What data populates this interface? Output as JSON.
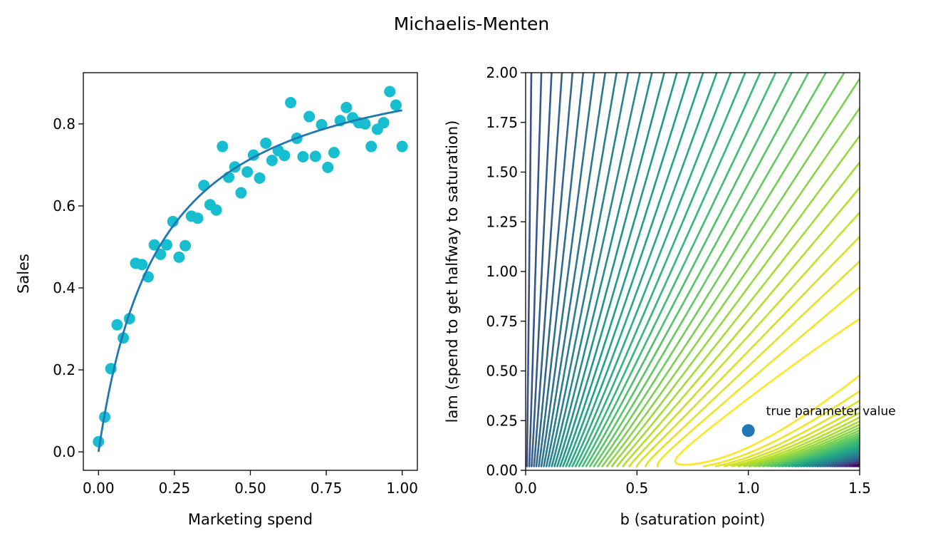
{
  "figure": {
    "title": "Michaelis-Menten"
  },
  "chart_data": [
    {
      "type": "scatter",
      "xlabel": "Marketing spend",
      "ylabel": "Sales",
      "xlim": [
        -0.05,
        1.05
      ],
      "ylim": [
        -0.045,
        0.925
      ],
      "xticks": [
        0.0,
        0.25,
        0.5,
        0.75,
        1.0
      ],
      "xtick_labels": [
        "0.00",
        "0.25",
        "0.50",
        "0.75",
        "1.00"
      ],
      "yticks": [
        0.0,
        0.2,
        0.4,
        0.6,
        0.8
      ],
      "ytick_labels": [
        "0.0",
        "0.2",
        "0.4",
        "0.6",
        "0.8"
      ],
      "grid": false,
      "series": [
        {
          "kind": "points",
          "color": "#17becf",
          "x": [
            0.0,
            0.0204,
            0.0408,
            0.0612,
            0.0816,
            0.102,
            0.1224,
            0.1429,
            0.1633,
            0.1837,
            0.2041,
            0.2245,
            0.2449,
            0.2653,
            0.2857,
            0.3061,
            0.3265,
            0.3469,
            0.3673,
            0.3878,
            0.4082,
            0.4286,
            0.449,
            0.4694,
            0.4898,
            0.5102,
            0.5306,
            0.551,
            0.5714,
            0.5918,
            0.6122,
            0.6327,
            0.6531,
            0.6735,
            0.6939,
            0.7143,
            0.7347,
            0.7551,
            0.7755,
            0.7959,
            0.8163,
            0.8367,
            0.8571,
            0.8776,
            0.898,
            0.9184,
            0.9388,
            0.9592,
            0.9796,
            1.0
          ],
          "y": [
            0.025,
            0.085,
            0.203,
            0.31,
            0.278,
            0.325,
            0.46,
            0.457,
            0.427,
            0.505,
            0.482,
            0.505,
            0.562,
            0.475,
            0.503,
            0.575,
            0.57,
            0.65,
            0.603,
            0.59,
            0.745,
            0.67,
            0.695,
            0.632,
            0.683,
            0.724,
            0.668,
            0.753,
            0.711,
            0.735,
            0.723,
            0.852,
            0.765,
            0.72,
            0.818,
            0.721,
            0.798,
            0.694,
            0.73,
            0.808,
            0.84,
            0.815,
            0.803,
            0.8,
            0.745,
            0.787,
            0.803,
            0.879,
            0.846,
            0.745
          ]
        },
        {
          "kind": "fit-curve",
          "color": "#1f77b4",
          "formula": "y = b*x/(lam + x)",
          "b": 1.0,
          "lam": 0.2,
          "x_range": [
            0.0,
            1.0
          ]
        }
      ]
    },
    {
      "type": "contour",
      "xlabel": "b (saturation point)",
      "ylabel": "lam (spend to get halfway to saturation)",
      "xlim": [
        0.0,
        1.5
      ],
      "ylim": [
        0.0,
        2.0
      ],
      "xticks": [
        0.0,
        0.5,
        1.0,
        1.5
      ],
      "xtick_labels": [
        "0.0",
        "0.5",
        "1.0",
        "1.5"
      ],
      "yticks": [
        0.0,
        0.25,
        0.5,
        0.75,
        1.0,
        1.25,
        1.5,
        1.75,
        2.0
      ],
      "ytick_labels": [
        "0.00",
        "0.25",
        "0.50",
        "0.75",
        "1.00",
        "1.25",
        "1.50",
        "1.75",
        "2.00"
      ],
      "colormap": "viridis",
      "objective": "sum of squared error of b*x/(lam + x) against the observed sales",
      "true_parameter": {
        "b": 1.0,
        "lam": 0.2,
        "color": "#1f77b4"
      },
      "annotation": {
        "text": "true parameter value",
        "b": 1.08,
        "lam": 0.3
      }
    }
  ]
}
